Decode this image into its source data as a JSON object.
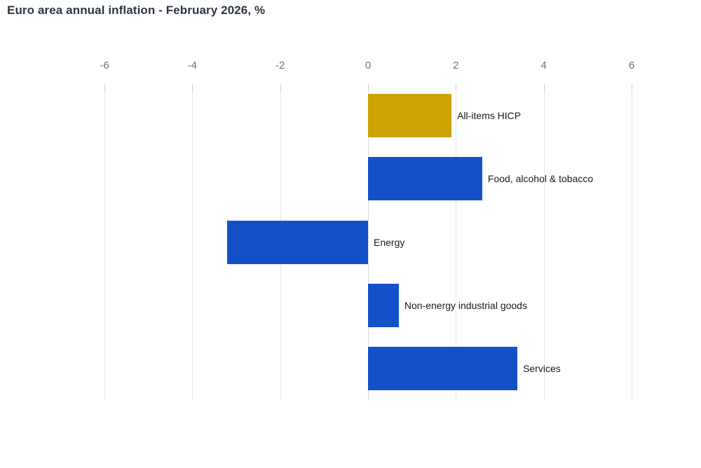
{
  "title": "Euro area annual inflation - February 2026, %",
  "colors": {
    "bar_blue": "#1451c9",
    "bar_gold": "#cca300",
    "gridline": "#e7e7e7",
    "zero_line": "#d9dce1",
    "tick": "#cfcfcf",
    "tick_label": "#6d717a",
    "category_label": "#1a1a1a",
    "title": "#2b3644",
    "background": "#ffffff"
  },
  "chart_data": {
    "type": "bar",
    "orientation": "horizontal",
    "title": "Euro area annual inflation - February 2026, %",
    "categories": [
      "All-items HICP",
      "Food, alcohol & tobacco",
      "Energy",
      "Non-energy industrial goods",
      "Services"
    ],
    "values": [
      1.9,
      2.6,
      -3.2,
      0.7,
      3.4
    ],
    "bar_colors": [
      "#cca300",
      "#1451c9",
      "#1451c9",
      "#1451c9",
      "#1451c9"
    ],
    "xlim": [
      -6,
      6
    ],
    "x_ticks": [
      -6,
      -4,
      -2,
      0,
      2,
      4,
      6
    ],
    "x_tick_labels": [
      "-6",
      "-4",
      "-2",
      "0",
      "2",
      "4",
      "6"
    ],
    "grid": "vertical",
    "value_axis_position": "top",
    "category_labels_position": "right-of-bar",
    "legend": "none"
  }
}
